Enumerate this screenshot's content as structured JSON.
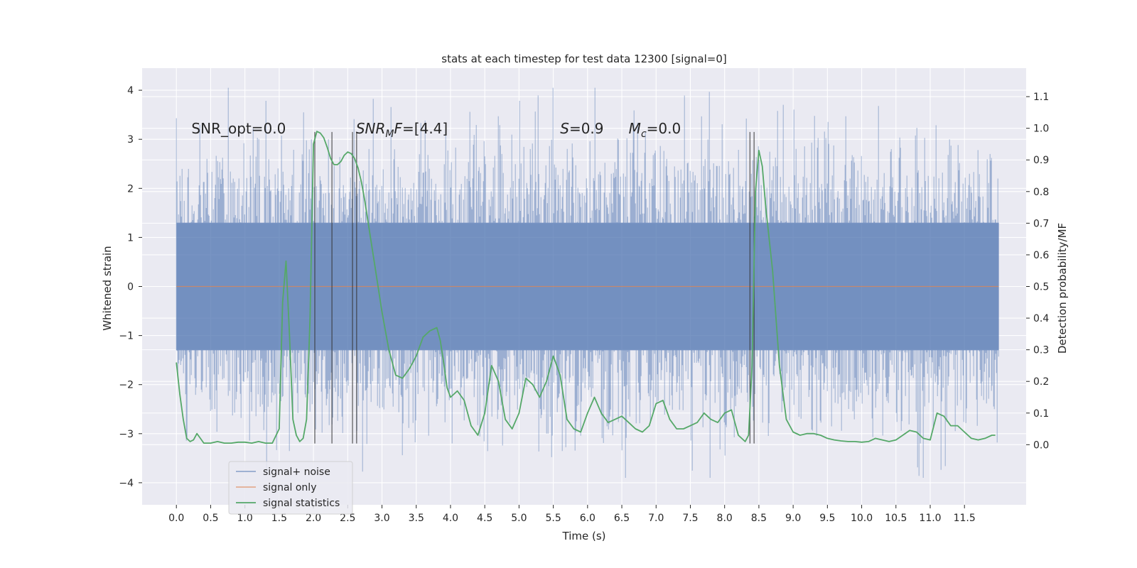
{
  "chart_data": {
    "type": "line",
    "title": "stats at each timestep for test data 12300 [signal=0]",
    "xlabel": "Time (s)",
    "ylabel_left": "Whitened strain",
    "ylabel_right": "Detection probability/MF",
    "xlim": [
      -0.5,
      12.4
    ],
    "ylim_left": [
      -4.45,
      4.45
    ],
    "ylim_right": [
      -0.19,
      1.19
    ],
    "x_ticks": [
      0.0,
      0.5,
      1.0,
      1.5,
      2.0,
      2.5,
      3.0,
      3.5,
      4.0,
      4.5,
      5.0,
      5.5,
      6.0,
      6.5,
      7.0,
      7.5,
      8.0,
      8.5,
      9.0,
      9.5,
      10.0,
      10.5,
      11.0,
      11.5
    ],
    "x_tick_labels": [
      "0.0",
      "0.5",
      "1.0",
      "1.5",
      "2.0",
      "2.5",
      "3.0",
      "3.5",
      "4.0",
      "4.5",
      "5.0",
      "5.5",
      "6.0",
      "6.5",
      "7.0",
      "7.5",
      "8.0",
      "8.5",
      "9.0",
      "9.5",
      "10.0",
      "10.5",
      "11.0",
      "11.5"
    ],
    "y_left_ticks": [
      -4,
      -3,
      -2,
      -1,
      0,
      1,
      2,
      3,
      4
    ],
    "y_left_tick_labels": [
      "−4",
      "−3",
      "−2",
      "−1",
      "0",
      "1",
      "2",
      "3",
      "4"
    ],
    "y_right_ticks": [
      0.0,
      0.1,
      0.2,
      0.3,
      0.4,
      0.5,
      0.6,
      0.7,
      0.8,
      0.9,
      1.0,
      1.1
    ],
    "y_right_tick_labels": [
      "0.0",
      "0.1",
      "0.2",
      "0.3",
      "0.4",
      "0.5",
      "0.6",
      "0.7",
      "0.8",
      "0.9",
      "1.0",
      "1.1"
    ],
    "grid": true,
    "legend_position": "lower-left",
    "series": [
      {
        "name": "signal+ noise",
        "color": "#4c72b0",
        "axis": "left",
        "kind": "noise",
        "x_range": [
          0.0,
          12.0
        ],
        "typical_band": [
          -1.3,
          1.3
        ],
        "envelope_range": [
          -3.9,
          4.05
        ]
      },
      {
        "name": "signal only",
        "color": "#dd8452",
        "axis": "left",
        "x": [
          0.0,
          12.0
        ],
        "y": [
          0.0,
          0.0
        ]
      },
      {
        "name": "signal statistics",
        "color": "#55a868",
        "axis": "right",
        "x": [
          0.0,
          0.05,
          0.1,
          0.15,
          0.2,
          0.25,
          0.3,
          0.35,
          0.4,
          0.5,
          0.6,
          0.7,
          0.8,
          0.9,
          1.0,
          1.1,
          1.2,
          1.3,
          1.4,
          1.5,
          1.55,
          1.6,
          1.65,
          1.7,
          1.75,
          1.8,
          1.85,
          1.9,
          1.95,
          2.0,
          2.05,
          2.1,
          2.15,
          2.2,
          2.25,
          2.3,
          2.35,
          2.4,
          2.45,
          2.5,
          2.55,
          2.6,
          2.65,
          2.7,
          2.75,
          2.8,
          2.9,
          3.0,
          3.1,
          3.2,
          3.3,
          3.4,
          3.5,
          3.6,
          3.7,
          3.8,
          3.85,
          3.9,
          3.95,
          4.0,
          4.1,
          4.2,
          4.3,
          4.4,
          4.5,
          4.6,
          4.7,
          4.8,
          4.9,
          5.0,
          5.1,
          5.2,
          5.3,
          5.4,
          5.5,
          5.6,
          5.7,
          5.8,
          5.9,
          6.0,
          6.1,
          6.2,
          6.3,
          6.4,
          6.5,
          6.6,
          6.7,
          6.8,
          6.9,
          7.0,
          7.1,
          7.2,
          7.3,
          7.4,
          7.5,
          7.6,
          7.7,
          7.8,
          7.9,
          8.0,
          8.1,
          8.2,
          8.3,
          8.35,
          8.4,
          8.45,
          8.5,
          8.55,
          8.6,
          8.7,
          8.8,
          8.9,
          9.0,
          9.1,
          9.2,
          9.3,
          9.4,
          9.5,
          9.6,
          9.7,
          9.8,
          9.9,
          10.0,
          10.1,
          10.2,
          10.3,
          10.4,
          10.5,
          10.6,
          10.7,
          10.8,
          10.9,
          11.0,
          11.1,
          11.2,
          11.3,
          11.4,
          11.5,
          11.6,
          11.7,
          11.8,
          11.9,
          11.95
        ],
        "y": [
          0.26,
          0.16,
          0.08,
          0.02,
          0.01,
          0.015,
          0.035,
          0.02,
          0.005,
          0.005,
          0.01,
          0.005,
          0.005,
          0.008,
          0.008,
          0.005,
          0.01,
          0.005,
          0.005,
          0.05,
          0.45,
          0.58,
          0.35,
          0.08,
          0.03,
          0.01,
          0.02,
          0.08,
          0.4,
          0.95,
          0.99,
          0.985,
          0.97,
          0.94,
          0.905,
          0.885,
          0.885,
          0.895,
          0.915,
          0.925,
          0.92,
          0.905,
          0.875,
          0.83,
          0.77,
          0.7,
          0.56,
          0.42,
          0.3,
          0.22,
          0.21,
          0.24,
          0.28,
          0.34,
          0.36,
          0.37,
          0.33,
          0.26,
          0.18,
          0.15,
          0.17,
          0.14,
          0.06,
          0.03,
          0.1,
          0.25,
          0.2,
          0.08,
          0.05,
          0.1,
          0.21,
          0.19,
          0.15,
          0.2,
          0.28,
          0.22,
          0.08,
          0.05,
          0.04,
          0.1,
          0.15,
          0.1,
          0.07,
          0.08,
          0.09,
          0.07,
          0.05,
          0.04,
          0.06,
          0.13,
          0.14,
          0.08,
          0.05,
          0.05,
          0.06,
          0.07,
          0.1,
          0.08,
          0.07,
          0.1,
          0.11,
          0.03,
          0.01,
          0.03,
          0.25,
          0.8,
          0.93,
          0.88,
          0.75,
          0.55,
          0.25,
          0.08,
          0.04,
          0.03,
          0.035,
          0.035,
          0.03,
          0.02,
          0.015,
          0.012,
          0.01,
          0.01,
          0.008,
          0.01,
          0.02,
          0.015,
          0.01,
          0.015,
          0.03,
          0.045,
          0.04,
          0.02,
          0.015,
          0.1,
          0.09,
          0.06,
          0.06,
          0.04,
          0.02,
          0.015,
          0.02,
          0.03,
          0.03
        ]
      }
    ],
    "vertical_markers": [
      {
        "x": 2.02,
        "range": [
          -3.2,
          3.15
        ]
      },
      {
        "x": 2.27,
        "range": [
          -3.2,
          3.15
        ]
      },
      {
        "x": 2.57,
        "range": [
          -3.2,
          3.15
        ]
      },
      {
        "x": 2.63,
        "range": [
          -3.2,
          3.15
        ]
      },
      {
        "x": 8.37,
        "range": [
          -3.2,
          3.15
        ]
      },
      {
        "x": 8.43,
        "range": [
          -3.2,
          3.15
        ]
      }
    ],
    "annotations": [
      {
        "id": "snr-opt",
        "x": 0.22,
        "y": 3.22,
        "text": "SNR_opt=0.0"
      },
      {
        "id": "snr-mf",
        "x": 2.62,
        "y": 3.22,
        "prefix": "SNR",
        "sub": "M",
        "suffix": "F=[4.4]"
      },
      {
        "id": "s-value",
        "x": 5.6,
        "y": 3.22,
        "prefix": "S",
        "sub": "",
        "suffix": "=0.9"
      },
      {
        "id": "mc-value",
        "x": 6.6,
        "y": 3.22,
        "prefix": "M",
        "sub": "c",
        "suffix": "=0.0"
      }
    ]
  }
}
